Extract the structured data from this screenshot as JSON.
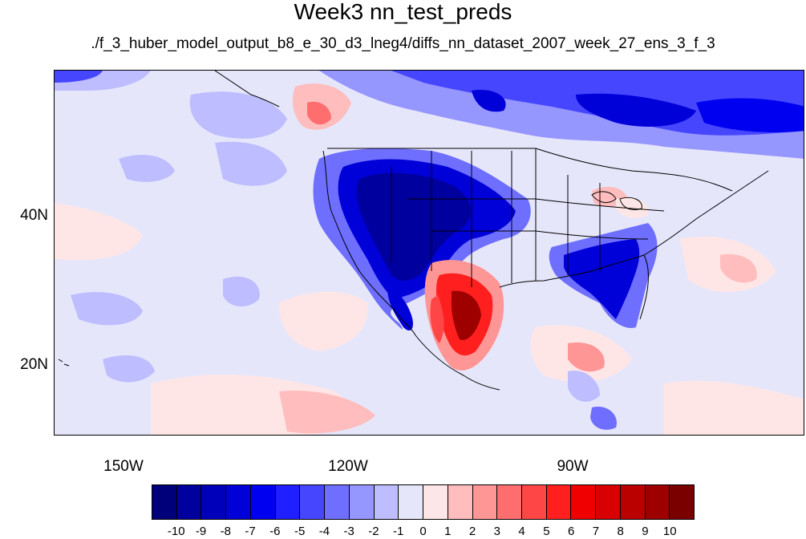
{
  "title": "Week3 nn_test_preds",
  "subtitle": "./f_3_huber_model_output_b8_e_30_d3_lneg4/diffs_nn_dataset_2007_week_27_ens_3_f_3",
  "map": {
    "lat_labels": [
      "40N",
      "20N"
    ],
    "lon_labels": [
      "150W",
      "120W",
      "90W"
    ]
  },
  "colorbar": {
    "labels": [
      "-10",
      "-9",
      "-8",
      "-7",
      "-6",
      "-5",
      "-4",
      "-3",
      "-2",
      "-1",
      "0",
      "1",
      "2",
      "3",
      "4",
      "5",
      "6",
      "7",
      "8",
      "9",
      "10"
    ],
    "colors": [
      "#00007a",
      "#00009e",
      "#0000bb",
      "#0000d8",
      "#0000f0",
      "#1f1fff",
      "#4646ff",
      "#6e6eff",
      "#9696ff",
      "#bdbdff",
      "#e6e6fb",
      "#ffe6e6",
      "#ffbdbd",
      "#ff9696",
      "#ff6e6e",
      "#ff4646",
      "#ff1f1f",
      "#f00000",
      "#d80000",
      "#bb0000",
      "#9e0000",
      "#7a0000"
    ]
  }
}
